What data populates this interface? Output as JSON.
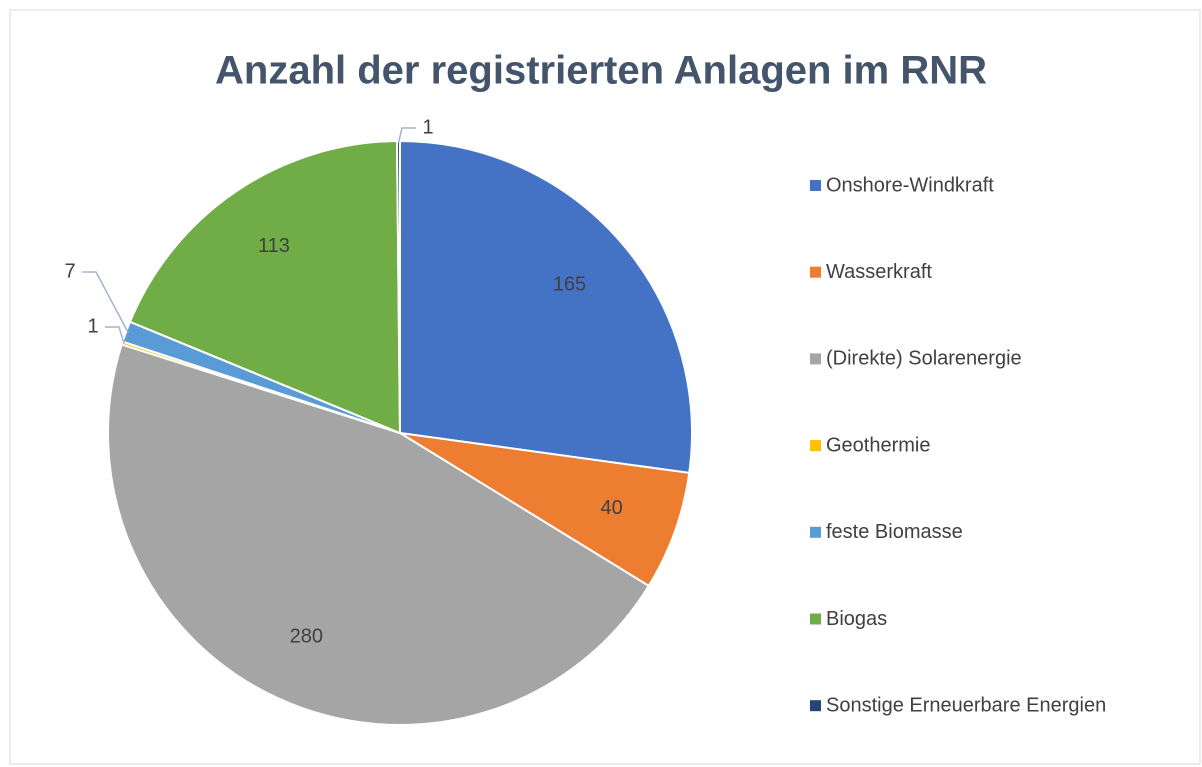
{
  "chart_data": {
    "type": "pie",
    "title": "Anzahl der registrierten Anlagen im RNR",
    "categories": [
      "Onshore-Windkraft",
      "Wasserkraft",
      "(Direkte) Solarenergie",
      "Geothermie",
      "feste Biomasse",
      "Biogas",
      "Sonstige Erneuerbare Energien"
    ],
    "values": [
      165,
      40,
      280,
      1,
      7,
      113,
      1
    ],
    "colors": [
      "#4472c4",
      "#ed7d31",
      "#a5a5a5",
      "#ffc000",
      "#5b9bd5",
      "#70ad47",
      "#264478"
    ],
    "legend": "right"
  }
}
